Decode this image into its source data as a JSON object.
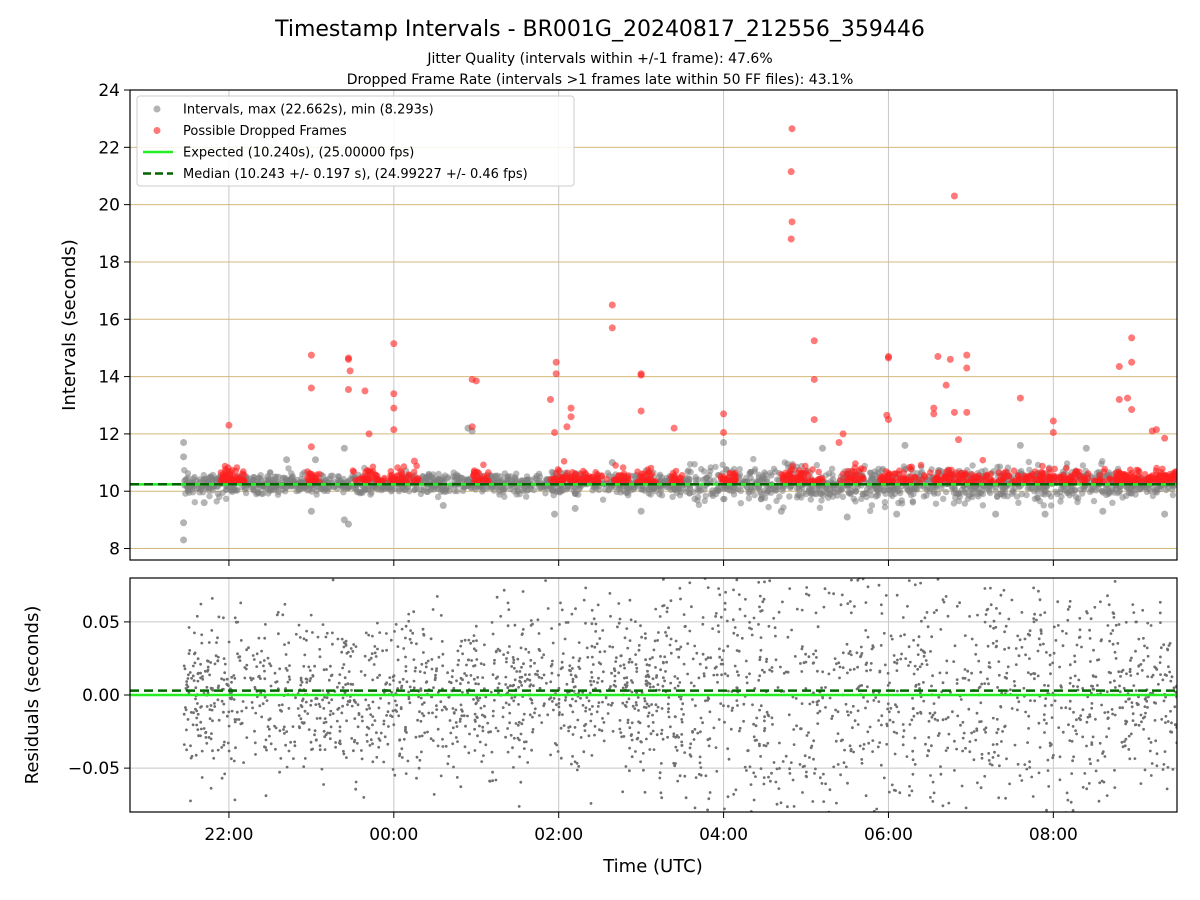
{
  "chart_data": {
    "type": "scatter",
    "title": "Timestamp Intervals - BR001G_20240817_212556_359446",
    "subtitles": [
      "Jitter Quality (intervals within +/-1 frame): 47.6%",
      "Dropped Frame Rate (intervals >1 frames late within 50 FF files): 43.1%"
    ],
    "xlabel": "Time (UTC)",
    "xlim_hours": [
      -3.2,
      9.5
    ],
    "x_ticks": [
      {
        "value": -2,
        "label": "22:00"
      },
      {
        "value": 0,
        "label": "00:00"
      },
      {
        "value": 2,
        "label": "02:00"
      },
      {
        "value": 4,
        "label": "04:00"
      },
      {
        "value": 6,
        "label": "06:00"
      },
      {
        "value": 8,
        "label": "08:00"
      }
    ],
    "top": {
      "ylabel": "Intervals (seconds)",
      "ylim": [
        7.6,
        24
      ],
      "y_ticks": [
        8,
        10,
        12,
        14,
        16,
        18,
        20,
        22,
        24
      ],
      "frame_lines": [
        8,
        10,
        12,
        14,
        16,
        18,
        20,
        22
      ],
      "expected": 10.24,
      "median": 10.243,
      "colors": {
        "intervals": "#808080",
        "dropped": "#ff2020",
        "expected": "#22ee22",
        "median": "#006400",
        "frame_lines": "#d4b97a",
        "grid": "#c8c8c8"
      },
      "legend": {
        "placement": "upper-left",
        "items": [
          {
            "label": "Intervals, max (22.662s), min (8.293s)",
            "kind": "gray-dot"
          },
          {
            "label": "Possible Dropped Frames",
            "kind": "red-dot"
          },
          {
            "label": "Expected (10.240s), (25.00000 fps)",
            "kind": "green-line"
          },
          {
            "label": "Median (10.243 +/- 0.197 s), (24.99227 +/- 0.46 fps)",
            "kind": "dashed-line"
          }
        ]
      },
      "intervals_outliers": [
        {
          "x": -2.55,
          "y": 11.7
        },
        {
          "x": -2.55,
          "y": 11.2
        },
        {
          "x": -2.55,
          "y": 8.9
        },
        {
          "x": -2.55,
          "y": 8.3
        },
        {
          "x": -2.3,
          "y": 9.6
        },
        {
          "x": -1.3,
          "y": 11.1
        },
        {
          "x": -1.0,
          "y": 9.3
        },
        {
          "x": -0.95,
          "y": 11.1
        },
        {
          "x": -0.6,
          "y": 11.5
        },
        {
          "x": -0.6,
          "y": 9.0
        },
        {
          "x": -0.55,
          "y": 8.85
        },
        {
          "x": 0.6,
          "y": 9.5
        },
        {
          "x": 0.9,
          "y": 12.2
        },
        {
          "x": 0.95,
          "y": 12.1
        },
        {
          "x": 1.95,
          "y": 9.2
        },
        {
          "x": 2.2,
          "y": 9.4
        },
        {
          "x": 2.65,
          "y": 11.0
        },
        {
          "x": 3.0,
          "y": 9.3
        },
        {
          "x": 4.0,
          "y": 11.7
        },
        {
          "x": 4.7,
          "y": 9.3
        },
        {
          "x": 5.2,
          "y": 11.5
        },
        {
          "x": 5.5,
          "y": 9.1
        },
        {
          "x": 6.1,
          "y": 9.2
        },
        {
          "x": 6.2,
          "y": 11.6
        },
        {
          "x": 7.3,
          "y": 9.2
        },
        {
          "x": 7.6,
          "y": 11.6
        },
        {
          "x": 7.9,
          "y": 9.2
        },
        {
          "x": 8.4,
          "y": 11.5
        },
        {
          "x": 8.6,
          "y": 9.3
        },
        {
          "x": 9.35,
          "y": 9.2
        }
      ],
      "dropped_outliers": [
        {
          "x": -2.0,
          "y": 12.3
        },
        {
          "x": -1.0,
          "y": 14.75
        },
        {
          "x": -1.0,
          "y": 13.6
        },
        {
          "x": -1.0,
          "y": 11.55
        },
        {
          "x": -0.55,
          "y": 14.65
        },
        {
          "x": -0.55,
          "y": 14.6
        },
        {
          "x": -0.53,
          "y": 14.2
        },
        {
          "x": -0.55,
          "y": 13.55
        },
        {
          "x": -0.35,
          "y": 13.5
        },
        {
          "x": -0.3,
          "y": 12.0
        },
        {
          "x": 0.0,
          "y": 15.15
        },
        {
          "x": 0.0,
          "y": 13.4
        },
        {
          "x": 0.0,
          "y": 12.9
        },
        {
          "x": 0.0,
          "y": 12.15
        },
        {
          "x": 0.25,
          "y": 11.05
        },
        {
          "x": 0.95,
          "y": 13.9
        },
        {
          "x": 1.0,
          "y": 13.85
        },
        {
          "x": 0.95,
          "y": 12.25
        },
        {
          "x": 1.9,
          "y": 13.2
        },
        {
          "x": 1.95,
          "y": 12.05
        },
        {
          "x": 1.97,
          "y": 14.5
        },
        {
          "x": 1.97,
          "y": 14.1
        },
        {
          "x": 2.15,
          "y": 12.9
        },
        {
          "x": 2.15,
          "y": 12.6
        },
        {
          "x": 2.1,
          "y": 12.25
        },
        {
          "x": 2.65,
          "y": 16.5
        },
        {
          "x": 2.65,
          "y": 15.7
        },
        {
          "x": 3.0,
          "y": 14.1
        },
        {
          "x": 3.0,
          "y": 14.05
        },
        {
          "x": 3.0,
          "y": 12.8
        },
        {
          "x": 3.4,
          "y": 12.2
        },
        {
          "x": 4.0,
          "y": 12.7
        },
        {
          "x": 4.0,
          "y": 12.05
        },
        {
          "x": 4.83,
          "y": 22.65
        },
        {
          "x": 4.82,
          "y": 21.15
        },
        {
          "x": 4.83,
          "y": 19.4
        },
        {
          "x": 4.82,
          "y": 18.8
        },
        {
          "x": 5.1,
          "y": 15.25
        },
        {
          "x": 5.1,
          "y": 13.9
        },
        {
          "x": 5.1,
          "y": 12.5
        },
        {
          "x": 5.45,
          "y": 12.0
        },
        {
          "x": 5.4,
          "y": 11.7
        },
        {
          "x": 6.0,
          "y": 14.7
        },
        {
          "x": 6.0,
          "y": 14.65
        },
        {
          "x": 5.98,
          "y": 12.65
        },
        {
          "x": 6.0,
          "y": 12.5
        },
        {
          "x": 6.55,
          "y": 12.9
        },
        {
          "x": 6.55,
          "y": 12.7
        },
        {
          "x": 6.6,
          "y": 14.7
        },
        {
          "x": 6.75,
          "y": 14.6
        },
        {
          "x": 6.7,
          "y": 13.7
        },
        {
          "x": 6.8,
          "y": 20.3
        },
        {
          "x": 6.8,
          "y": 12.75
        },
        {
          "x": 6.95,
          "y": 14.75
        },
        {
          "x": 6.95,
          "y": 14.3
        },
        {
          "x": 6.95,
          "y": 12.75
        },
        {
          "x": 6.85,
          "y": 11.8
        },
        {
          "x": 7.6,
          "y": 13.25
        },
        {
          "x": 8.0,
          "y": 12.45
        },
        {
          "x": 8.0,
          "y": 12.05
        },
        {
          "x": 8.8,
          "y": 14.35
        },
        {
          "x": 8.95,
          "y": 15.35
        },
        {
          "x": 8.95,
          "y": 14.5
        },
        {
          "x": 8.9,
          "y": 13.25
        },
        {
          "x": 8.8,
          "y": 13.2
        },
        {
          "x": 8.95,
          "y": 12.85
        },
        {
          "x": 9.25,
          "y": 12.15
        },
        {
          "x": 9.2,
          "y": 12.1
        },
        {
          "x": 9.35,
          "y": 11.85
        }
      ]
    },
    "bottom": {
      "ylabel": "Residuals (seconds)",
      "ylim": [
        -0.08,
        0.08
      ],
      "y_ticks": [
        {
          "value": 0.05,
          "label": "0.05"
        },
        {
          "value": 0.0,
          "label": "0.00"
        },
        {
          "value": -0.05,
          "label": "−0.05"
        }
      ],
      "expected": 0.0,
      "median": 0.003,
      "colors": {
        "points": "#707070"
      }
    }
  }
}
